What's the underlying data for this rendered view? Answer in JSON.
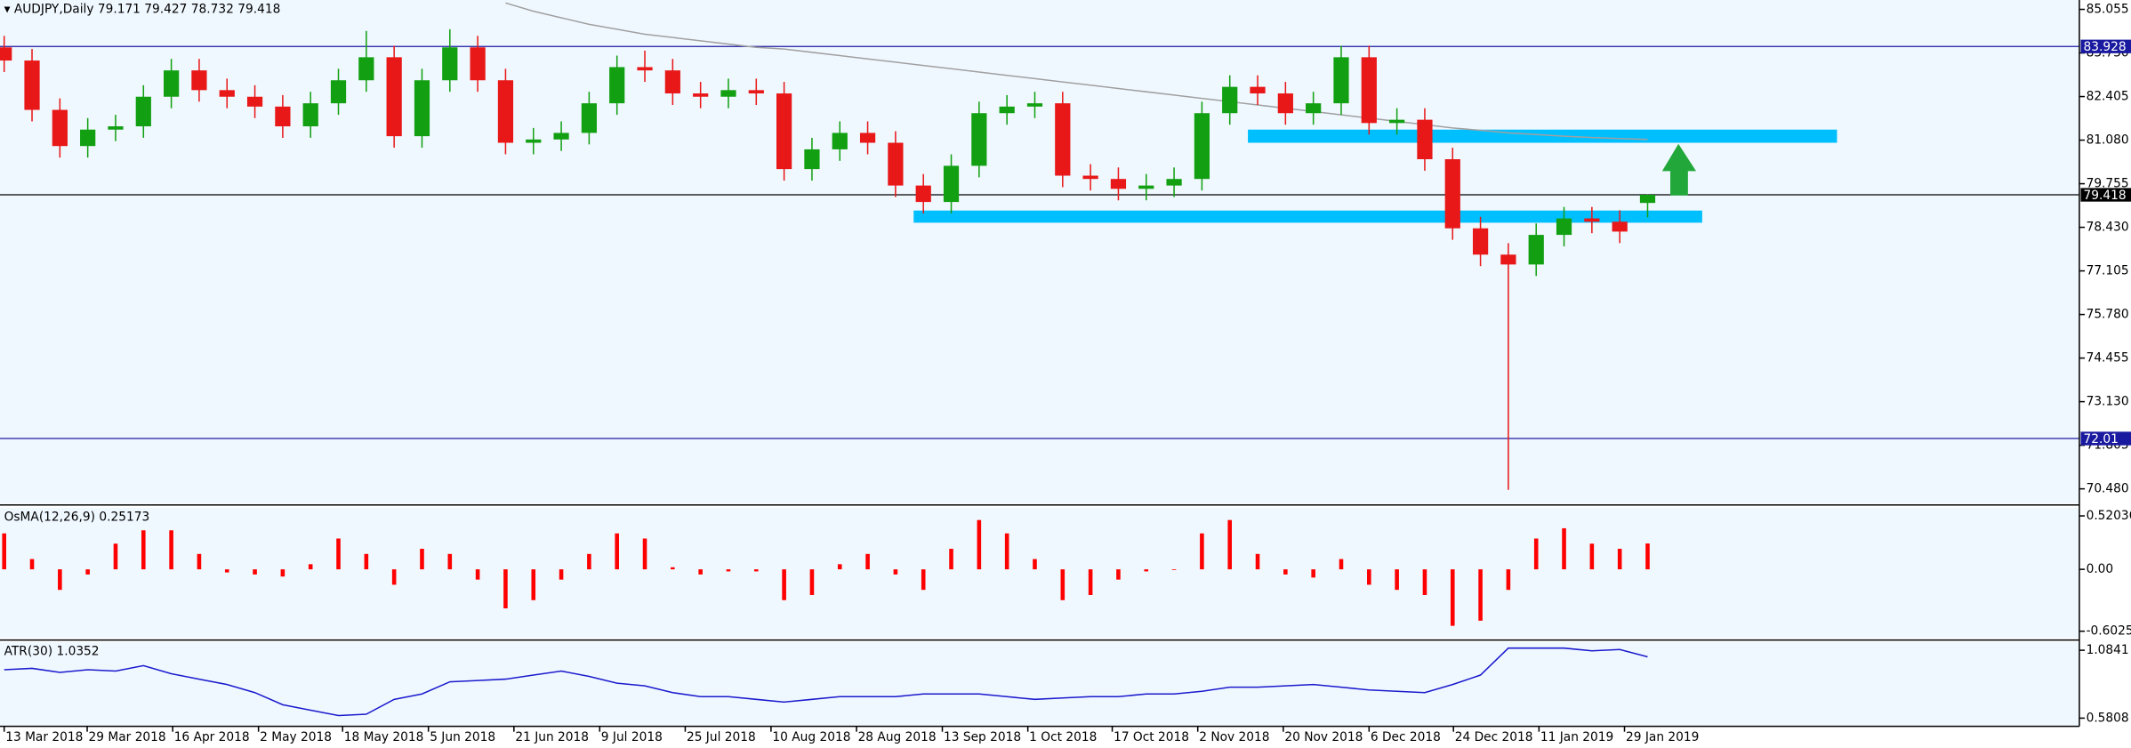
{
  "chart_data": [
    {
      "type": "candlestick",
      "title": "AUDJPY,Daily",
      "open": [
        83.9,
        83.5,
        82.0,
        80.9,
        81.4,
        81.5,
        82.4,
        83.2,
        82.6,
        82.4,
        82.1,
        81.5,
        82.2,
        82.9,
        83.6,
        81.2,
        82.9,
        83.9,
        82.9,
        81.0,
        81.1,
        81.3,
        82.2,
        83.3,
        83.2,
        82.5,
        82.4,
        82.6,
        82.5,
        80.2,
        80.8,
        81.3,
        81.0,
        79.7,
        79.2,
        80.3,
        81.9,
        82.1,
        82.2,
        80.0,
        79.9,
        79.6,
        79.7,
        79.9,
        81.9,
        82.7,
        82.5,
        81.9,
        82.2,
        83.6,
        81.6,
        81.7,
        80.5,
        78.4,
        77.6,
        77.3,
        78.2,
        78.7,
        78.6,
        79.171
      ],
      "high": [
        84.25,
        83.85,
        82.35,
        81.75,
        81.85,
        82.75,
        83.55,
        83.55,
        82.95,
        82.75,
        82.45,
        82.55,
        83.25,
        84.4,
        83.95,
        83.25,
        84.45,
        84.25,
        83.25,
        81.45,
        81.65,
        82.55,
        83.65,
        83.8,
        83.55,
        82.85,
        82.95,
        82.95,
        82.85,
        81.15,
        81.65,
        81.65,
        81.35,
        80.05,
        80.65,
        82.25,
        82.45,
        82.55,
        82.55,
        80.35,
        80.25,
        80.05,
        80.25,
        82.25,
        83.05,
        83.05,
        82.85,
        82.55,
        83.95,
        83.95,
        82.05,
        82.05,
        80.85,
        78.75,
        77.95,
        78.55,
        79.05,
        79.05,
        78.95,
        79.427
      ],
      "low": [
        83.15,
        81.65,
        80.55,
        80.55,
        81.05,
        81.15,
        82.05,
        82.25,
        82.05,
        81.75,
        81.15,
        81.15,
        81.85,
        82.55,
        80.85,
        80.85,
        82.55,
        82.55,
        80.65,
        80.65,
        80.75,
        80.95,
        81.85,
        82.85,
        82.15,
        82.05,
        82.05,
        82.15,
        79.85,
        79.85,
        80.45,
        80.65,
        79.35,
        78.85,
        78.85,
        79.95,
        81.55,
        81.75,
        79.65,
        79.55,
        79.25,
        79.25,
        79.35,
        79.55,
        81.55,
        82.15,
        81.55,
        81.55,
        81.85,
        81.25,
        81.25,
        80.15,
        78.05,
        77.25,
        70.45,
        76.95,
        77.85,
        78.25,
        77.95,
        78.732
      ],
      "close": [
        83.5,
        82.0,
        80.9,
        81.4,
        81.5,
        82.4,
        83.2,
        82.6,
        82.4,
        82.1,
        81.5,
        82.2,
        82.9,
        83.6,
        81.2,
        82.9,
        83.9,
        82.9,
        81.0,
        81.1,
        81.3,
        82.2,
        83.3,
        83.2,
        82.5,
        82.4,
        82.6,
        82.5,
        80.2,
        80.8,
        81.3,
        81.0,
        79.7,
        79.2,
        80.3,
        81.9,
        82.1,
        82.2,
        80.0,
        79.9,
        79.6,
        79.7,
        79.9,
        81.9,
        82.7,
        82.5,
        81.9,
        82.2,
        83.6,
        81.6,
        81.7,
        80.5,
        78.4,
        77.6,
        77.3,
        78.2,
        78.7,
        78.6,
        78.3,
        79.418
      ],
      "up_color": "#12a012",
      "down_color": "#e81818",
      "ma": {
        "color": "#a0a0a0",
        "values": [
          null,
          null,
          null,
          null,
          null,
          null,
          null,
          null,
          null,
          null,
          null,
          null,
          null,
          null,
          null,
          null,
          null,
          null,
          85.25,
          85.0,
          84.8,
          84.6,
          84.45,
          84.3,
          84.2,
          84.1,
          84.0,
          83.9,
          83.85,
          83.75,
          83.65,
          83.55,
          83.45,
          83.35,
          83.25,
          83.15,
          83.05,
          82.95,
          82.85,
          82.75,
          82.65,
          82.55,
          82.45,
          82.35,
          82.25,
          82.15,
          82.05,
          81.95,
          81.85,
          81.75,
          81.65,
          81.55,
          81.45,
          81.38,
          81.3,
          81.25,
          81.2,
          81.16,
          81.13,
          81.1
        ]
      },
      "hlines": [
        {
          "price": 83.928,
          "color": "#1a1aa0"
        },
        {
          "price": 79.418,
          "color": "#000000"
        },
        {
          "price": 72.01,
          "color": "#1a1aa0"
        }
      ],
      "zones": [
        {
          "from": 44.65,
          "to": 65.8,
          "low": 81.0,
          "high": 81.4,
          "color": "#00bfff"
        },
        {
          "from": 32.65,
          "to": 60.96,
          "low": 78.57,
          "high": 78.94,
          "color": "#00bfff"
        }
      ],
      "ylim": [
        70.03,
        85.34
      ],
      "yticks": [
        85.055,
        {
          "value": 83.73,
          "label": "83.730"
        },
        82.405,
        {
          "value": 81.08,
          "label": "81.080"
        },
        79.755,
        {
          "value": 78.43,
          "label": "78.430"
        },
        77.105,
        {
          "value": 75.78,
          "label": "75.780"
        },
        74.455,
        {
          "value": 73.13,
          "label": "73.130"
        },
        71.805,
        {
          "value": 70.48,
          "label": "70.480"
        }
      ],
      "xlim": [
        -0.15,
        74.5
      ],
      "xticks": [
        {
          "value": 0,
          "label": "13 Mar 2018"
        },
        {
          "value": 2.98,
          "label": "29 Mar 2018"
        },
        {
          "value": 6.05,
          "label": "16 Apr 2018"
        },
        {
          "value": 9.13,
          "label": "2 May 2018"
        },
        {
          "value": 12.15,
          "label": "18 May 2018"
        },
        {
          "value": 15.23,
          "label": "5 Jun 2018"
        },
        {
          "value": 18.3,
          "label": "21 Jun 2018"
        },
        {
          "value": 21.38,
          "label": "9 Jul 2018"
        },
        {
          "value": 24.45,
          "label": "25 Jul 2018"
        },
        {
          "value": 27.53,
          "label": "10 Aug 2018"
        },
        {
          "value": 30.6,
          "label": "28 Aug 2018"
        },
        {
          "value": 33.68,
          "label": "13 Sep 2018"
        },
        {
          "value": 36.75,
          "label": "1 Oct 2018"
        },
        {
          "value": 39.78,
          "label": "17 Oct 2018"
        },
        {
          "value": 42.85,
          "label": "2 Nov 2018"
        },
        {
          "value": 45.92,
          "label": "20 Nov 2018"
        },
        {
          "value": 49.0,
          "label": "6 Dec 2018"
        },
        {
          "value": 52.03,
          "label": "24 Dec 2018"
        },
        {
          "value": 55.1,
          "label": "11 Jan 2019"
        },
        {
          "value": 58.17,
          "label": "29 Jan 2019"
        }
      ]
    },
    {
      "type": "bar",
      "title": "OsMA(12,26,9)",
      "color": "#ff0000",
      "values": [
        0.35,
        0.1,
        -0.2,
        -0.05,
        0.25,
        0.38,
        0.38,
        0.15,
        -0.03,
        -0.05,
        -0.07,
        0.05,
        0.3,
        0.15,
        -0.15,
        0.2,
        0.15,
        -0.1,
        -0.38,
        -0.3,
        -0.1,
        0.15,
        0.35,
        0.3,
        0.02,
        -0.05,
        -0.02,
        -0.02,
        -0.3,
        -0.25,
        0.05,
        0.15,
        -0.05,
        -0.2,
        0.2,
        0.48,
        0.35,
        0.1,
        -0.3,
        -0.25,
        -0.1,
        -0.02,
        0.0,
        0.35,
        0.48,
        0.15,
        -0.05,
        -0.08,
        0.1,
        -0.15,
        -0.2,
        -0.25,
        -0.55,
        -0.5,
        -0.2,
        0.3,
        0.4,
        0.25,
        0.2,
        0.25173
      ],
      "ylim": [
        -0.669,
        0.6
      ],
      "yticks": [
        0.52036,
        {
          "value": 0,
          "label": "0.00"
        },
        -0.60254
      ]
    },
    {
      "type": "line",
      "title": "ATR(30)",
      "color": "#1a1acd",
      "values": [
        0.94,
        0.95,
        0.92,
        0.94,
        0.93,
        0.97,
        0.91,
        0.87,
        0.83,
        0.77,
        0.68,
        0.64,
        0.6,
        0.61,
        0.72,
        0.76,
        0.85,
        0.86,
        0.87,
        0.9,
        0.93,
        0.89,
        0.84,
        0.82,
        0.77,
        0.74,
        0.74,
        0.72,
        0.7,
        0.72,
        0.74,
        0.74,
        0.74,
        0.76,
        0.76,
        0.76,
        0.74,
        0.72,
        0.73,
        0.74,
        0.74,
        0.76,
        0.76,
        0.78,
        0.81,
        0.81,
        0.82,
        0.83,
        0.81,
        0.79,
        0.78,
        0.77,
        0.83,
        0.9,
        1.1,
        1.1,
        1.1,
        1.08,
        1.09,
        1.0352
      ],
      "ylim": [
        0.5204,
        1.1445
      ],
      "yticks": [
        1.0841,
        0.5808
      ]
    }
  ]
}
